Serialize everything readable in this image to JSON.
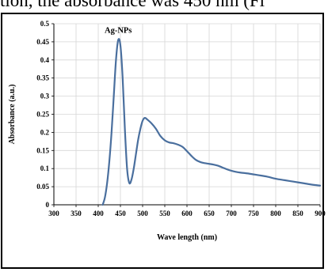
{
  "page": {
    "top_text": "tion, the absorbance was 450 nm (Fi"
  },
  "chart_data": {
    "type": "line",
    "title": "",
    "xlabel": "Wave length (nm)",
    "ylabel": "Absorbance  (a.u.)",
    "xlim": [
      300,
      900
    ],
    "ylim": [
      0,
      0.5
    ],
    "xticks": [
      300,
      350,
      400,
      450,
      500,
      550,
      600,
      650,
      700,
      750,
      800,
      850,
      900
    ],
    "yticks": [
      0,
      0.05,
      0.1,
      0.15,
      0.2,
      0.25,
      0.3,
      0.35,
      0.4,
      0.45,
      0.5
    ],
    "ytick_labels": [
      "0",
      "0.05",
      "0.1",
      "0.15",
      "0.2",
      "0.25",
      "0.3",
      "0.35",
      "0.4",
      "0.45",
      "0.5"
    ],
    "grid": true,
    "line_color": "#4a6f9e",
    "annotations": [
      {
        "text": "Ag-NPs",
        "x": 445,
        "y": 0.475
      }
    ],
    "series": [
      {
        "name": "",
        "x": [
          410,
          415,
          420,
          425,
          430,
          435,
          440,
          445,
          450,
          455,
          460,
          465,
          470,
          475,
          480,
          485,
          490,
          495,
          500,
          505,
          510,
          520,
          530,
          540,
          550,
          560,
          570,
          580,
          590,
          600,
          610,
          620,
          630,
          640,
          650,
          660,
          670,
          680,
          690,
          700,
          710,
          720,
          740,
          760,
          780,
          800,
          820,
          840,
          860,
          880,
          900
        ],
        "y": [
          0.0,
          0.02,
          0.06,
          0.12,
          0.2,
          0.3,
          0.4,
          0.455,
          0.44,
          0.35,
          0.21,
          0.1,
          0.06,
          0.07,
          0.1,
          0.14,
          0.18,
          0.21,
          0.232,
          0.24,
          0.236,
          0.225,
          0.21,
          0.19,
          0.178,
          0.172,
          0.17,
          0.166,
          0.16,
          0.148,
          0.135,
          0.124,
          0.118,
          0.115,
          0.113,
          0.111,
          0.108,
          0.103,
          0.098,
          0.094,
          0.091,
          0.089,
          0.086,
          0.082,
          0.078,
          0.072,
          0.068,
          0.064,
          0.06,
          0.056,
          0.053
        ]
      }
    ]
  }
}
